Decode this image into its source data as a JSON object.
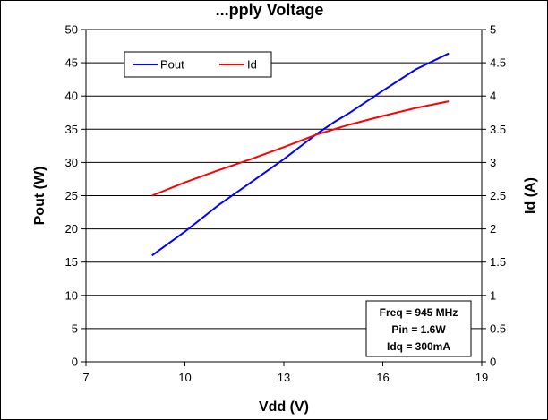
{
  "chart_data": {
    "type": "line",
    "title": "...pply Voltage",
    "xlabel": "Vdd (V)",
    "ylabel": "Pout (W)",
    "y2label": "Id (A)",
    "xlim": [
      7,
      19
    ],
    "ylim": [
      0,
      50
    ],
    "y2lim": [
      0,
      5
    ],
    "xticks": [
      "7",
      "10",
      "13",
      "16",
      "19"
    ],
    "yticks": [
      "0",
      "5",
      "10",
      "15",
      "20",
      "25",
      "30",
      "35",
      "40",
      "45",
      "50"
    ],
    "y2ticks": [
      "0",
      "0.5",
      "1",
      "1.5",
      "2",
      "2.5",
      "3",
      "3.5",
      "4",
      "4.5",
      "5"
    ],
    "grid": "horizontal",
    "legend_position": "top-left",
    "series": [
      {
        "name": "Pout",
        "axis": "left",
        "color": "#0000ff",
        "x": [
          9,
          9.5,
          10,
          11,
          12,
          13,
          14,
          14.5,
          15,
          16,
          17,
          18
        ],
        "y": [
          16,
          17.8,
          19.6,
          23.5,
          27,
          30.5,
          34.3,
          36,
          37.5,
          40.8,
          44,
          46.4
        ]
      },
      {
        "name": "Id",
        "axis": "right",
        "color": "#ff0000",
        "x": [
          9,
          10,
          11,
          12,
          13,
          14,
          15,
          16,
          17,
          18
        ],
        "y": [
          2.5,
          2.7,
          2.88,
          3.05,
          3.23,
          3.42,
          3.57,
          3.7,
          3.82,
          3.92
        ]
      }
    ],
    "annotations": [
      "Freq = 945 MHz",
      "Pin = 1.6W",
      "Idq = 300mA"
    ]
  }
}
